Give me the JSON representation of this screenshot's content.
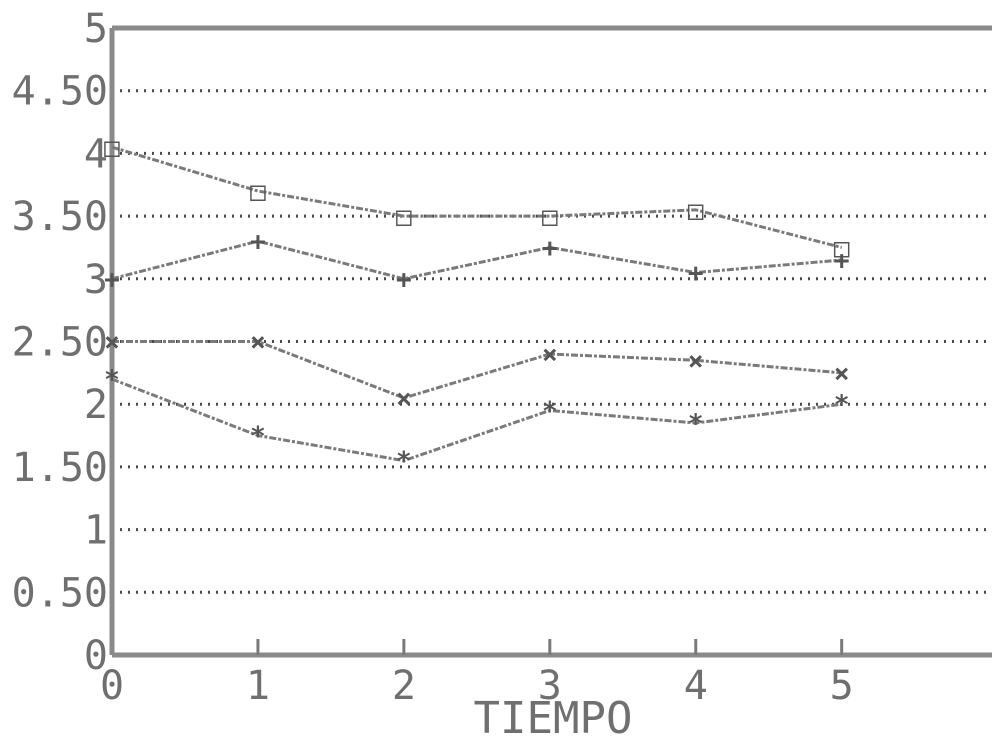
{
  "chart_data": {
    "type": "line",
    "title": "",
    "xlabel": "TIEMPO",
    "ylabel": "",
    "x": [
      0,
      1,
      2,
      3,
      4,
      5
    ],
    "x_tick_labels": [
      "0",
      "1",
      "2",
      "3",
      "4",
      "5"
    ],
    "xlim": [
      0,
      6
    ],
    "ylim": [
      0,
      5
    ],
    "y_ticks": [
      0,
      0.5,
      1,
      1.5,
      2,
      2.5,
      3,
      3.5,
      4,
      4.5,
      5
    ],
    "y_tick_labels": [
      "0",
      "0.50",
      "1",
      "1.50",
      "2",
      "2.50",
      "3",
      "3.50",
      "4",
      "4.50",
      "5"
    ],
    "grid": true,
    "legend": "none",
    "series": [
      {
        "marker": "□",
        "values": [
          4.05,
          3.7,
          3.5,
          3.5,
          3.55,
          3.25
        ]
      },
      {
        "marker": "+",
        "values": [
          3.0,
          3.3,
          3.0,
          3.25,
          3.05,
          3.15
        ]
      },
      {
        "marker": "×",
        "values": [
          2.5,
          2.5,
          2.05,
          2.4,
          2.35,
          2.25
        ]
      },
      {
        "marker": "*",
        "values": [
          2.2,
          1.75,
          1.55,
          1.95,
          1.85,
          2.0
        ]
      }
    ]
  }
}
